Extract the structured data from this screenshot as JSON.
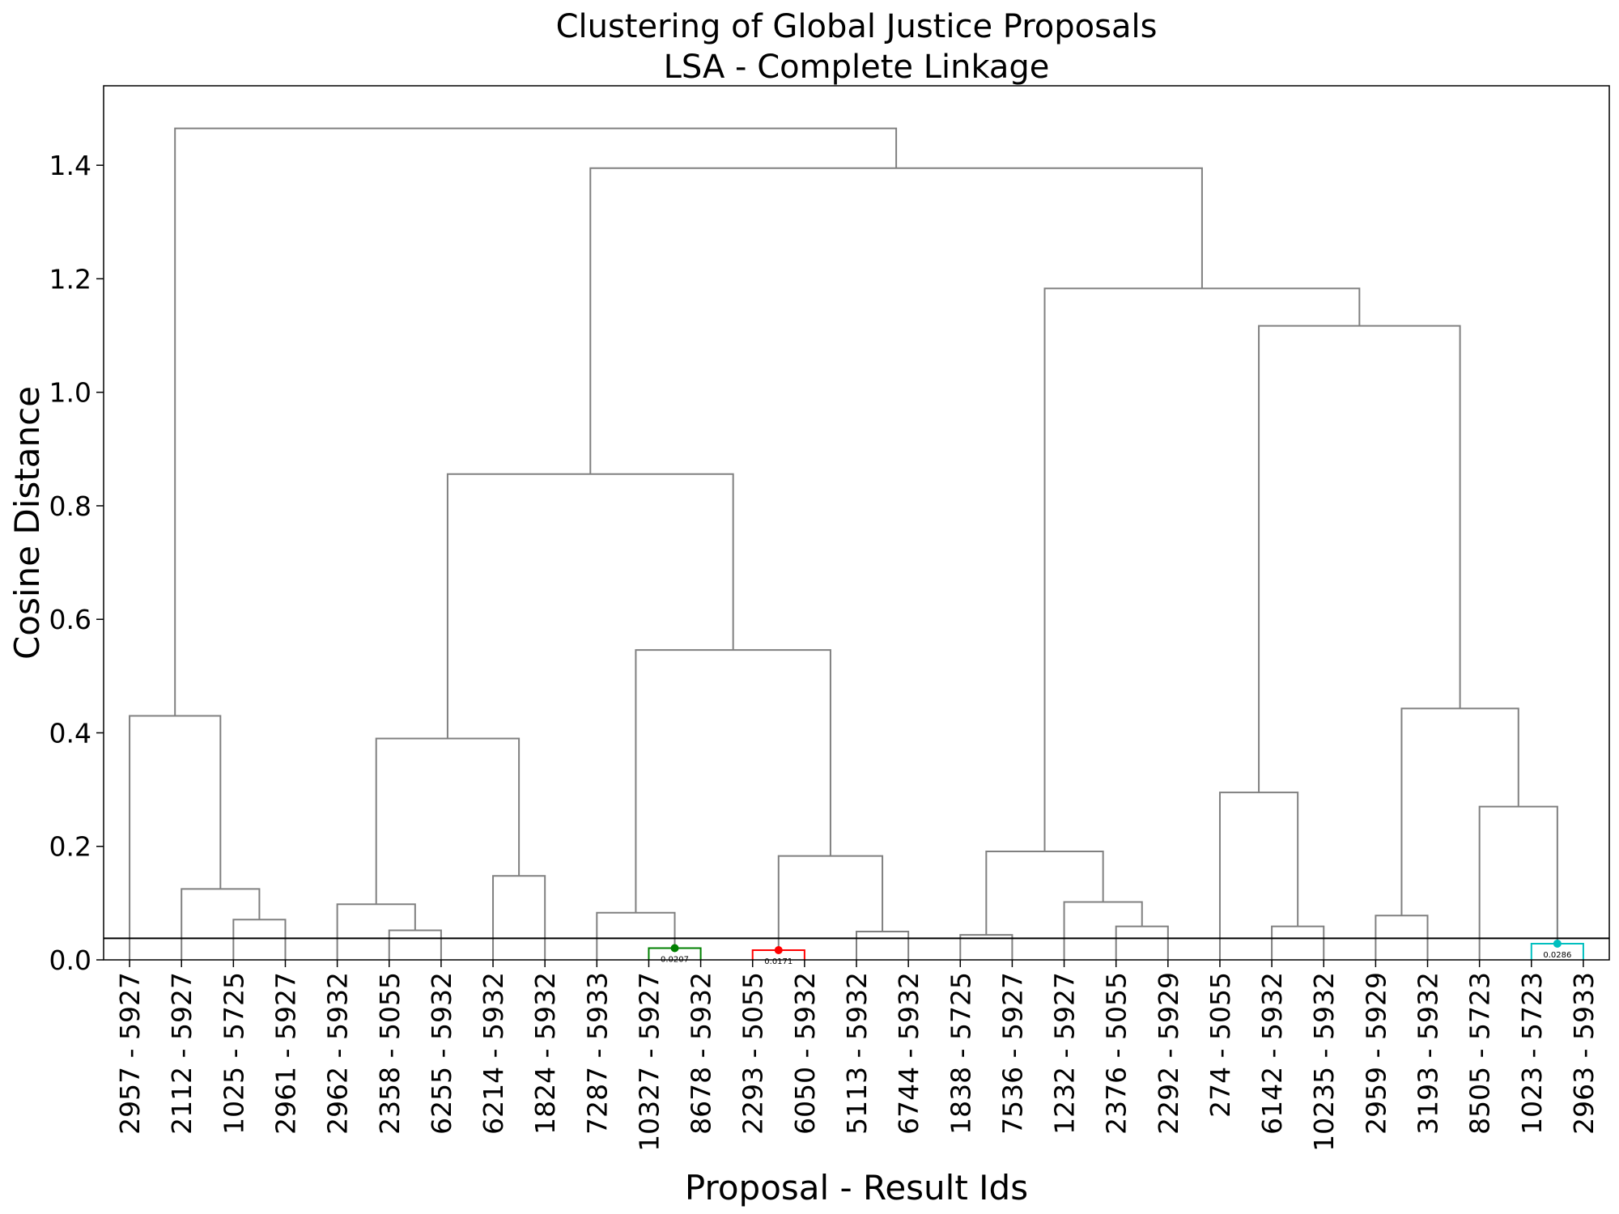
{
  "chart_data": {
    "type": "dendrogram",
    "title": [
      "Clustering of Global Justice Proposals",
      "LSA - Complete Linkage"
    ],
    "xlabel": "Proposal - Result Ids",
    "ylabel": "Cosine Distance",
    "ylim": [
      0,
      1.54
    ],
    "yticks": [
      "0.0",
      "0.2",
      "0.4",
      "0.6",
      "0.8",
      "1.0",
      "1.2",
      "1.4"
    ],
    "ytick_values": [
      0,
      0.2,
      0.4,
      0.6,
      0.8,
      1.0,
      1.2,
      1.4
    ],
    "leaves": [
      "2957 - 5927",
      "2112 - 5927",
      "1025 - 5725",
      "2961 - 5927",
      "2962 - 5932",
      "2358 - 5055",
      "6255 - 5932",
      "6214 - 5932",
      "1824 - 5932",
      "7287 - 5933",
      "10327 - 5927",
      "8678 - 5932",
      "2293 - 5055",
      "6050 - 5932",
      "5113 - 5932",
      "6744 - 5932",
      "1838 - 5725",
      "7536 - 5927",
      "1232 - 5927",
      "2376 - 5055",
      "2292 - 5929",
      "274 - 5055",
      "6142 - 5932",
      "10235 - 5932",
      "2959 - 5929",
      "3193 - 5932",
      "8505 - 5723",
      "1023 - 5723",
      "2963 - 5933"
    ],
    "threshold": 0.038,
    "line_color": "#808080",
    "merges": [
      {
        "left": 2,
        "right": 3,
        "height": 0.071
      },
      {
        "left": 1,
        "right": 29,
        "height": 0.125
      },
      {
        "left": 0,
        "right": 30,
        "height": 0.43
      },
      {
        "left": 5,
        "right": 6,
        "height": 0.052
      },
      {
        "left": 4,
        "right": 32,
        "height": 0.098
      },
      {
        "left": 7,
        "right": 8,
        "height": 0.148
      },
      {
        "left": 33,
        "right": 34,
        "height": 0.39
      },
      {
        "left": 10,
        "right": 11,
        "height": 0.0207,
        "color": "#008000",
        "label": "0.0207"
      },
      {
        "left": 9,
        "right": 36,
        "height": 0.083
      },
      {
        "left": 12,
        "right": 13,
        "height": 0.0171,
        "color": "#ff0000",
        "label": "0.0171"
      },
      {
        "left": 14,
        "right": 15,
        "height": 0.05
      },
      {
        "left": 38,
        "right": 39,
        "height": 0.183
      },
      {
        "left": 37,
        "right": 40,
        "height": 0.546
      },
      {
        "left": 35,
        "right": 41,
        "height": 0.856
      },
      {
        "left": 16,
        "right": 17,
        "height": 0.044
      },
      {
        "left": 19,
        "right": 20,
        "height": 0.059
      },
      {
        "left": 18,
        "right": 44,
        "height": 0.102
      },
      {
        "left": 43,
        "right": 45,
        "height": 0.191
      },
      {
        "left": 22,
        "right": 23,
        "height": 0.059
      },
      {
        "left": 21,
        "right": 47,
        "height": 0.295
      },
      {
        "left": 24,
        "right": 25,
        "height": 0.078
      },
      {
        "left": 27,
        "right": 28,
        "height": 0.0286,
        "color": "#00bfbf",
        "label": "0.0286"
      },
      {
        "left": 26,
        "right": 50,
        "height": 0.27
      },
      {
        "left": 49,
        "right": 51,
        "height": 0.443
      },
      {
        "left": 48,
        "right": 52,
        "height": 1.117
      },
      {
        "left": 46,
        "right": 53,
        "height": 1.183
      },
      {
        "left": 42,
        "right": 54,
        "height": 1.395
      },
      {
        "left": 31,
        "right": 55,
        "height": 1.465
      }
    ]
  }
}
